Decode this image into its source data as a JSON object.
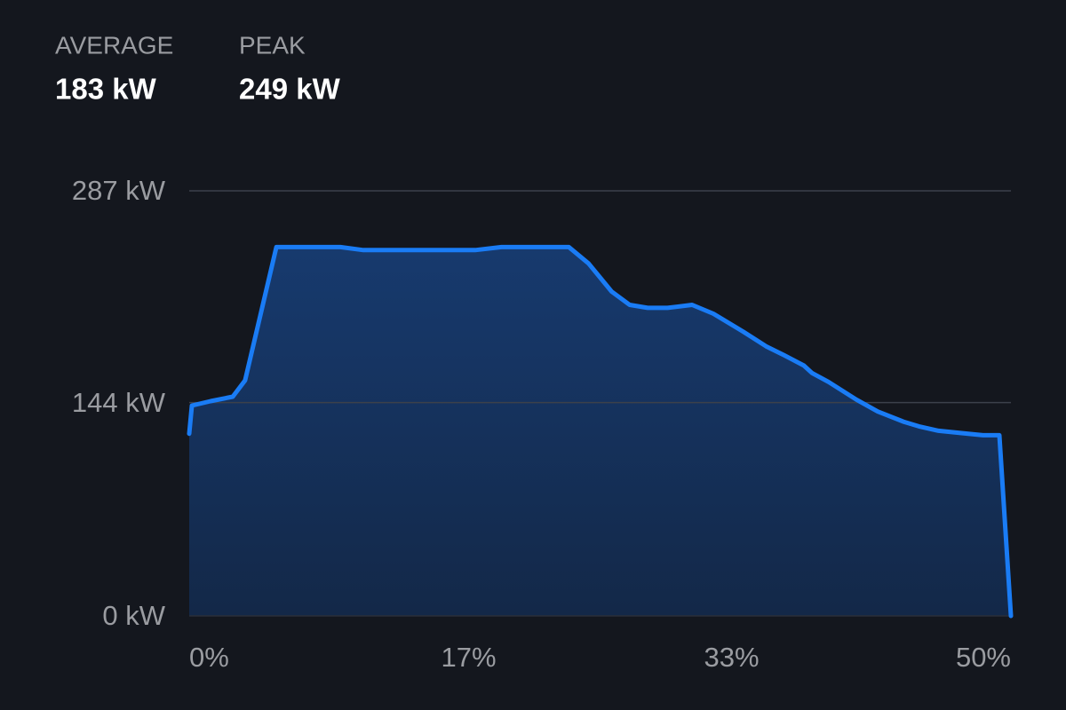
{
  "stats": [
    {
      "label": "AVERAGE",
      "value": "183 kW"
    },
    {
      "label": "PEAK",
      "value": "249 kW"
    }
  ],
  "chart_data": {
    "type": "area",
    "x": [
      0,
      0.16,
      1.3,
      2.65,
      3.4,
      5.3,
      9.2,
      10.6,
      17.4,
      19.0,
      23.1,
      24.3,
      25.7,
      26.8,
      27.9,
      29.1,
      30.6,
      31.9,
      33.7,
      35.1,
      36.2,
      37.4,
      37.9,
      38.9,
      40.6,
      41.9,
      43.5,
      44.4,
      45.6,
      47.4,
      48.3,
      49.3,
      50
    ],
    "values": [
      123,
      142,
      145,
      148,
      159,
      249,
      249,
      247,
      247,
      249,
      249,
      238,
      219,
      210,
      208,
      208,
      210,
      204,
      192,
      182,
      176,
      169,
      164,
      158,
      146,
      138,
      131,
      128,
      125,
      123,
      122,
      122,
      0
    ],
    "color": "#1a7cf5",
    "xlim": [
      0,
      50
    ],
    "xticks": [
      {
        "value": 0,
        "label": "0%"
      },
      {
        "value": 17,
        "label": "17%"
      },
      {
        "value": 33,
        "label": "33%"
      },
      {
        "value": 50,
        "label": "50%"
      }
    ],
    "ylim": [
      0,
      287
    ],
    "yticks": [
      {
        "value": 0,
        "label": "0 kW"
      },
      {
        "value": 144,
        "label": "144 kW"
      },
      {
        "value": 287,
        "label": "287 kW"
      }
    ],
    "grid": true
  }
}
